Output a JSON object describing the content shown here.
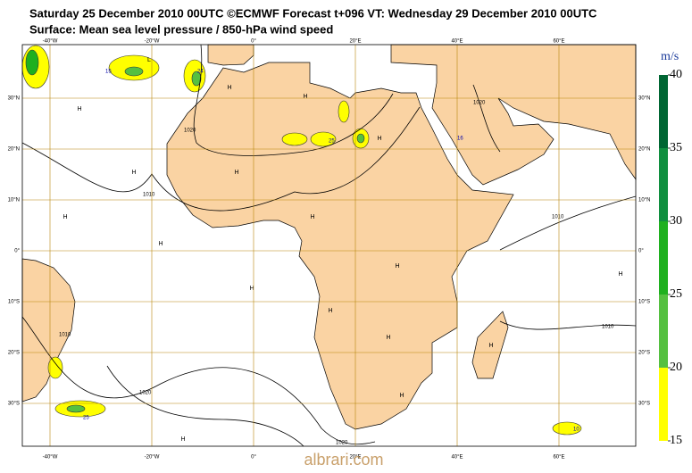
{
  "header": {
    "line1": "Saturday 25 December 2010 00UTC ©ECMWF Forecast t+096 VT: Wednesday 29 December 2010 00UTC",
    "line2": "Surface: Mean sea level pressure / 850-hPa wind speed"
  },
  "map": {
    "lon_ticks": [
      {
        "value": -40,
        "label": "-40°W"
      },
      {
        "value": -20,
        "label": "-20°W"
      },
      {
        "value": 0,
        "label": "0°"
      },
      {
        "value": 20,
        "label": "20°E"
      },
      {
        "value": 40,
        "label": "40°E"
      },
      {
        "value": 60,
        "label": "60°E"
      }
    ],
    "lat_ticks": [
      {
        "value": 30,
        "label": "30°N"
      },
      {
        "value": 20,
        "label": "20°N"
      },
      {
        "value": 10,
        "label": "10°N"
      },
      {
        "value": 0,
        "label": "0°"
      },
      {
        "value": -10,
        "label": "10°S"
      },
      {
        "value": -20,
        "label": "20°S"
      },
      {
        "value": -30,
        "label": "30°S"
      }
    ],
    "pressure_centers": [
      "H",
      "H",
      "H",
      "H",
      "H",
      "H",
      "H",
      "H",
      "H",
      "H",
      "H",
      "H",
      "H",
      "H",
      "H",
      "H",
      "H",
      "L"
    ],
    "isobar_labels": [
      "1020",
      "1010",
      "1020",
      "1010",
      "1010",
      "1020",
      "1010",
      "1020"
    ],
    "wind_labels": [
      "15",
      "24",
      "25",
      "25",
      "10",
      "16"
    ]
  },
  "colorbar": {
    "unit": "m/s",
    "range": [
      15,
      40
    ],
    "ticks": [
      15,
      20,
      25,
      30,
      35,
      40
    ],
    "colors": [
      "#ffff00",
      "#55c040",
      "#1fb01f",
      "#108f3f",
      "#006633"
    ]
  },
  "watermark": "albrari.com"
}
